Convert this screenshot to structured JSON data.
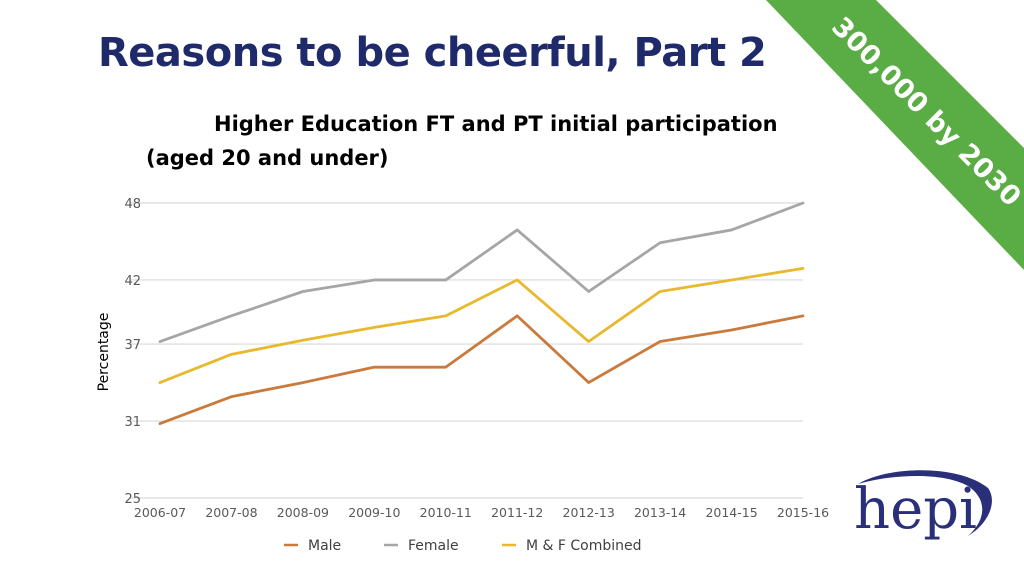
{
  "slide": {
    "title": "Reasons to be cheerful, Part 2",
    "banner_text": "300,000 by 2030",
    "banner_color": "#5aac44",
    "title_color": "#1f2a6b",
    "logo_text": "hepi",
    "logo_color": "#2a2f7a"
  },
  "chart_data": {
    "type": "line",
    "title_line1": "Higher Education FT and PT initial participation",
    "title_line2": "(aged 20 and under)",
    "xlabel": "",
    "ylabel": "Percentage",
    "ylim": [
      25,
      48
    ],
    "yticks": [
      25,
      31,
      37,
      42,
      48
    ],
    "grid": true,
    "legend_position": "bottom",
    "categories": [
      "2006-07",
      "2007-08",
      "2008-09",
      "2009-10",
      "2010-11",
      "2011-12",
      "2012-13",
      "2013-14",
      "2014-15",
      "2015-16"
    ],
    "series": [
      {
        "name": "Male",
        "color": "#c97a3c",
        "values": [
          30.8,
          32.9,
          34.0,
          35.2,
          35.2,
          39.2,
          34.0,
          37.2,
          38.1,
          39.2
        ]
      },
      {
        "name": "Female",
        "color": "#a6a6a6",
        "values": [
          37.2,
          39.2,
          41.1,
          42.0,
          42.0,
          45.9,
          41.1,
          44.9,
          45.9,
          48.0
        ]
      },
      {
        "name": "M & F Combined",
        "color": "#e8b92e",
        "values": [
          34.0,
          36.2,
          37.3,
          38.3,
          39.2,
          42.0,
          37.2,
          41.1,
          42.0,
          42.9
        ]
      }
    ]
  }
}
